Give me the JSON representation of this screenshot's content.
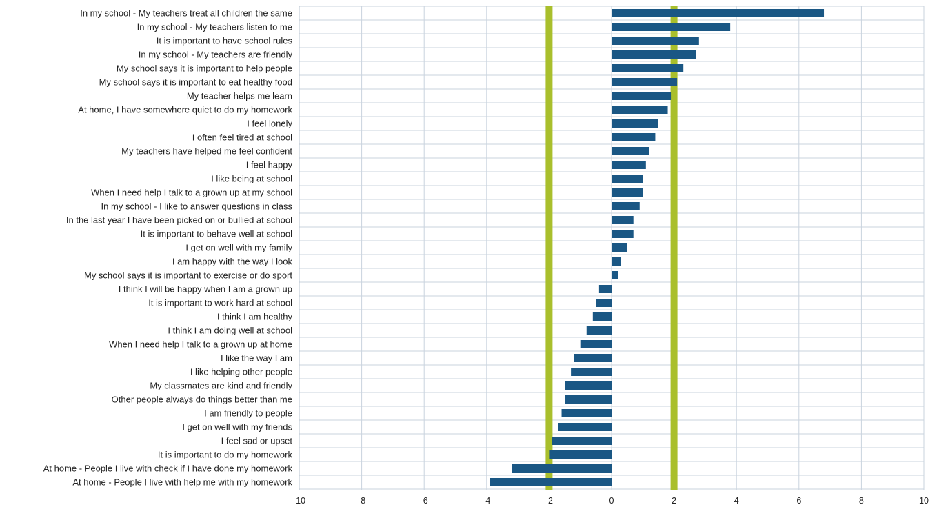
{
  "chart_data": {
    "type": "bar",
    "orientation": "horizontal",
    "title": "",
    "xlabel": "",
    "ylabel": "",
    "xlim": [
      -10,
      10
    ],
    "x_ticks": [
      -10,
      -8,
      -6,
      -4,
      -2,
      0,
      2,
      4,
      6,
      8,
      10
    ],
    "grid": true,
    "legend": "none",
    "reference_lines": [
      -2,
      2
    ],
    "colors": {
      "bar": "#1a5784",
      "reference_line": "#a9bf2c",
      "grid": "#c9d3de"
    },
    "categories": [
      "In my school - My teachers treat all children the same",
      "In my school - My teachers listen to me",
      "It is important to have school rules",
      "In my school - My teachers are friendly",
      "My school says it is important to help people",
      "My school says it is important to eat healthy food",
      "My teacher helps me learn",
      "At home, I have somewhere quiet to do my homework",
      "I feel lonely",
      "I often feel tired at school",
      "My teachers have helped me feel confident",
      "I feel happy",
      "I like being at school",
      "When I need help I talk to a grown up at my school",
      "In my school - I like to answer questions in class",
      "In the last year I have been picked on or bullied at school",
      "It is important to behave well at school",
      "I get on well with my family",
      "I am happy with the way I look",
      "My school says it is important to exercise or do sport",
      "I think I will be happy when I am a grown up",
      "It is important to work hard at school",
      "I think I am healthy",
      "I think I am doing well at school",
      "When I need help I talk to a grown up at home",
      "I like the way I am",
      "I like helping other people",
      "My classmates are kind and friendly",
      "Other people always do things better than me",
      "I am friendly to people",
      "I get on well with my friends",
      "I feel sad or upset",
      "It is important to do my homework",
      "At home - People I live with check if I have done my homework",
      "At home - People I live with help me with my homework"
    ],
    "values": [
      6.8,
      3.8,
      2.8,
      2.7,
      2.3,
      2.1,
      1.9,
      1.8,
      1.5,
      1.4,
      1.2,
      1.1,
      1.0,
      1.0,
      0.9,
      0.7,
      0.7,
      0.5,
      0.3,
      0.2,
      -0.4,
      -0.5,
      -0.6,
      -0.8,
      -1.0,
      -1.2,
      -1.3,
      -1.5,
      -1.5,
      -1.6,
      -1.7,
      -1.9,
      -2.0,
      -3.2,
      -3.9
    ]
  }
}
